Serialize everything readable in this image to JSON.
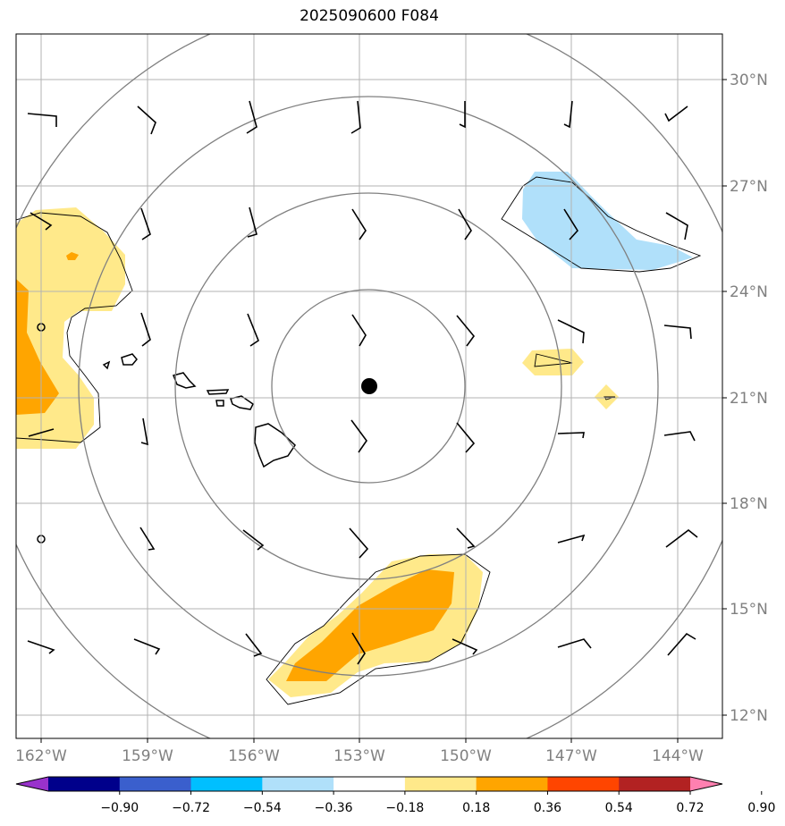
{
  "title": "2025090600 F084",
  "lat_labels": [
    "30°N",
    "27°N",
    "24°N",
    "21°N",
    "18°N",
    "15°N",
    "12°N"
  ],
  "lon_labels": [
    "162°W",
    "159°W",
    "156°W",
    "153°W",
    "150°W",
    "147°W",
    "144°W"
  ],
  "colorbar": {
    "ticks": [
      "−0.90",
      "−0.72",
      "−0.54",
      "−0.36",
      "−0.18",
      "0.18",
      "0.36",
      "0.54",
      "0.72",
      "0.90"
    ],
    "colors": [
      "#9932cc",
      "#00008b",
      "#3a5fcd",
      "#00bfff",
      "#b0e0fa",
      "#ffffff",
      "#ffe98a",
      "#ffa500",
      "#ff4500",
      "#b22222",
      "#ff80b0"
    ]
  },
  "legend_colors": {
    "light_yellow": "#ffe98a",
    "orange": "#ffa500",
    "light_blue": "#b0e0fa",
    "grid": "#b3b3b3",
    "rings": "#808080"
  },
  "storm_center_icon": "storm-center-dot-icon"
}
